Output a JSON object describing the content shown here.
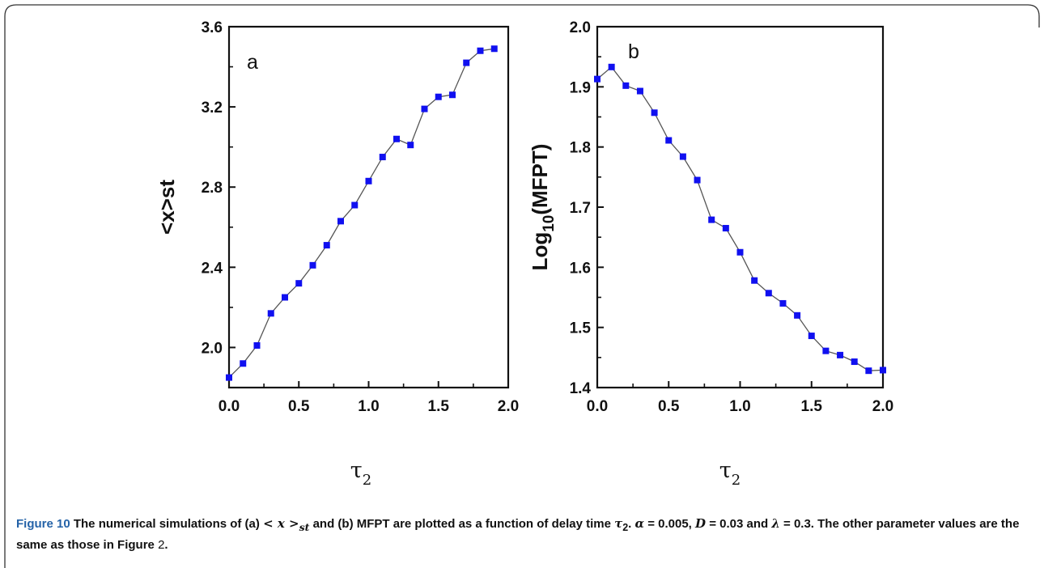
{
  "caption": {
    "label": "Figure 10",
    "part1": " The numerical simulations of (a) ",
    "sym_x": "< x >",
    "sub_st": "st",
    "part2": " and (b) MFPT are plotted as a function of delay time ",
    "sym_tau": "τ",
    "sub_2": "2",
    "part3": ". ",
    "alpha_sym": "α",
    "alpha_val": " = 0.005, ",
    "d_sym": "D",
    "d_val": " = 0.03 and ",
    "lambda_sym": "λ",
    "lambda_val": " = 0.3. The other parameter values are the same as those in Figure ",
    "fig_ref": "2",
    "end": "."
  },
  "colors": {
    "marker": "#1010f0",
    "line": "#555555",
    "axis": "#111111",
    "caption_label": "#2563a8"
  },
  "chart_data": [
    {
      "type": "line",
      "panel_label": "a",
      "xlabel": "τ",
      "xlabel_sub": "2",
      "ylabel": "<x>st",
      "xlim": [
        0,
        2.0
      ],
      "ylim": [
        1.8,
        3.6
      ],
      "xticks": [
        "0.0",
        "0.5",
        "1.0",
        "1.5",
        "2.0"
      ],
      "yticks": [
        "2.0",
        "2.4",
        "2.8",
        "3.2",
        "3.6"
      ],
      "series": [
        {
          "x": [
            0.0,
            0.1,
            0.2,
            0.3,
            0.4,
            0.5,
            0.6,
            0.7,
            0.8,
            0.9,
            1.0,
            1.1,
            1.2,
            1.3,
            1.4,
            1.5,
            1.6,
            1.7,
            1.8,
            1.9
          ],
          "y": [
            1.85,
            1.92,
            2.01,
            2.17,
            2.25,
            2.32,
            2.41,
            2.51,
            2.63,
            2.71,
            2.83,
            2.95,
            3.04,
            3.01,
            3.19,
            3.25,
            3.26,
            3.42,
            3.48,
            3.49
          ]
        }
      ]
    },
    {
      "type": "line",
      "panel_label": "b",
      "xlabel": "τ",
      "xlabel_sub": "2",
      "ylabel": "Log",
      "ylabel_sub": "10",
      "ylabel_tail": "(MFPT)",
      "xlim": [
        0,
        2.0
      ],
      "ylim": [
        1.4,
        2.0
      ],
      "xticks": [
        "0.0",
        "0.5",
        "1.0",
        "1.5",
        "2.0"
      ],
      "yticks": [
        "1.4",
        "1.5",
        "1.6",
        "1.7",
        "1.8",
        "1.9",
        "2.0"
      ],
      "series": [
        {
          "x": [
            0.0,
            0.1,
            0.2,
            0.3,
            0.4,
            0.5,
            0.6,
            0.7,
            0.8,
            0.9,
            1.0,
            1.1,
            1.2,
            1.3,
            1.4,
            1.5,
            1.6,
            1.7,
            1.8,
            1.9,
            2.0
          ],
          "y": [
            1.913,
            1.933,
            1.902,
            1.893,
            1.857,
            1.811,
            1.784,
            1.745,
            1.679,
            1.665,
            1.625,
            1.578,
            1.557,
            1.54,
            1.52,
            1.486,
            1.461,
            1.454,
            1.443,
            1.428,
            1.429
          ]
        }
      ]
    }
  ]
}
